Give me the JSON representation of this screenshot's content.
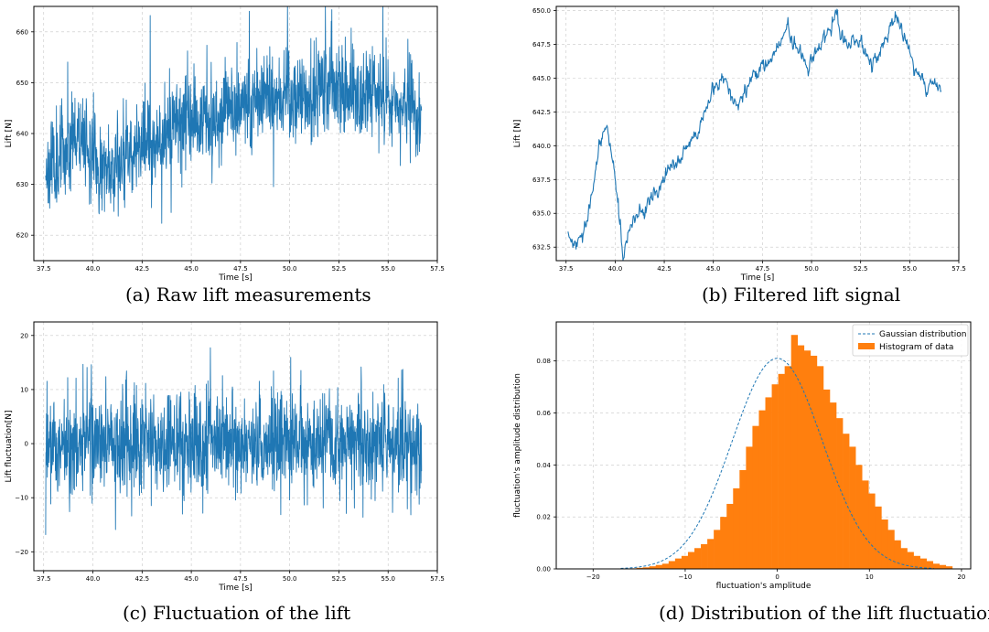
{
  "figure": {
    "captions": {
      "a": "(a) Raw lift measurements",
      "b": "(b) Filtered lift signal",
      "c": "(c) Fluctuation of the lift",
      "d": "(d) Distribution of the lift fluctuation"
    }
  },
  "colors": {
    "series": "#1f77b4",
    "histogram": "#ff7f0e",
    "gaussian": "#1f77b4"
  },
  "chart_data": [
    {
      "id": "a",
      "type": "line",
      "xlabel": "Time [s]",
      "ylabel": "Lift [N]",
      "xlim": [
        37.0,
        57.5
      ],
      "ylim": [
        615,
        665
      ],
      "xticks": [
        "37.5",
        "40.0",
        "42.5",
        "45.0",
        "47.5",
        "50.0",
        "52.5",
        "55.0",
        "57.5"
      ],
      "yticks": [
        "620",
        "630",
        "640",
        "650",
        "660"
      ],
      "grid": true,
      "series": [
        {
          "style": "noisy-dense",
          "x_range": [
            37.6,
            56.7
          ],
          "sample_count": 1400,
          "noise_sd": 4.5,
          "trend": {
            "x": [
              37.6,
              38.4,
              39.0,
              39.6,
              40.3,
              41.0,
              42.0,
              43.0,
              44.0,
              45.0,
              46.0,
              47.0,
              48.0,
              49.0,
              50.0,
              51.0,
              52.0,
              53.0,
              54.0,
              55.0,
              56.0,
              56.7
            ],
            "y": [
              633,
              636,
              640,
              640,
              632,
              634,
              637,
              639,
              641,
              644,
              643,
              645,
              646,
              648,
              646,
              647,
              649,
              646,
              648,
              647,
              645,
              645
            ]
          }
        }
      ]
    },
    {
      "id": "b",
      "type": "line",
      "xlabel": "Time [s]",
      "ylabel": "Lift [N]",
      "xlim": [
        37.0,
        57.5
      ],
      "ylim": [
        631.5,
        650.3
      ],
      "xticks": [
        "37.5",
        "40.0",
        "42.5",
        "45.0",
        "47.5",
        "50.0",
        "52.5",
        "55.0",
        "57.5"
      ],
      "yticks": [
        "632.5",
        "635.0",
        "637.5",
        "640.0",
        "642.5",
        "645.0",
        "647.5",
        "650.0"
      ],
      "grid": true,
      "series": [
        {
          "style": "smooth-wiggle",
          "x_range": [
            37.6,
            56.6
          ],
          "sample_count": 700,
          "wiggle_sd": 0.25,
          "trend": {
            "x": [
              37.6,
              38.0,
              38.3,
              38.8,
              39.2,
              39.6,
              39.9,
              40.2,
              40.4,
              40.7,
              41.2,
              41.8,
              42.5,
              43.2,
              43.8,
              44.3,
              44.8,
              45.2,
              45.6,
              46.0,
              46.5,
              47.0,
              47.5,
              48.0,
              48.4,
              48.8,
              49.2,
              49.8,
              50.3,
              50.8,
              51.3,
              51.7,
              52.1,
              52.6,
              53.0,
              53.5,
              54.0,
              54.4,
              54.8,
              55.2,
              55.5,
              55.8,
              56.1,
              56.6
            ],
            "y": [
              633.3,
              632.5,
              633.0,
              636.0,
              640.0,
              641.5,
              639.0,
              635.0,
              632.0,
              633.5,
              635.0,
              636.0,
              637.5,
              639.0,
              640.0,
              641.0,
              643.5,
              644.5,
              645.0,
              643.0,
              643.5,
              645.0,
              646.0,
              646.5,
              647.5,
              649.0,
              647.0,
              646.0,
              647.0,
              648.0,
              649.5,
              647.5,
              648.0,
              647.5,
              646.0,
              647.0,
              648.5,
              649.0,
              648.0,
              646.0,
              645.0,
              644.0,
              644.6,
              644.5
            ]
          }
        }
      ]
    },
    {
      "id": "c",
      "type": "line",
      "xlabel": "Time [s]",
      "ylabel": "Lift fluctuation[N]",
      "xlim": [
        37.0,
        57.5
      ],
      "ylim": [
        -23.5,
        22.5
      ],
      "xticks": [
        "37.5",
        "40.0",
        "42.5",
        "45.0",
        "47.5",
        "50.0",
        "52.5",
        "55.0",
        "57.5"
      ],
      "yticks": [
        "−20",
        "−10",
        "0",
        "10",
        "20"
      ],
      "grid": true,
      "series": [
        {
          "style": "noisy-dense",
          "x_range": [
            37.6,
            56.7
          ],
          "sample_count": 1400,
          "noise_sd": 4.8,
          "trend": {
            "x": [
              37.6,
              56.7
            ],
            "y": [
              0,
              0
            ]
          }
        }
      ]
    },
    {
      "id": "d",
      "type": "bar",
      "xlabel": "fluctuation's amplitude",
      "ylabel": "fluctuation's amplitude distribution",
      "xlim": [
        -24,
        21
      ],
      "ylim": [
        0,
        0.095
      ],
      "xticks": [
        "−20",
        "−10",
        "0",
        "10",
        "20"
      ],
      "yticks": [
        "0.00",
        "0.02",
        "0.04",
        "0.06",
        "0.08"
      ],
      "grid": true,
      "legend": {
        "position": "top-right",
        "entries": [
          "Gaussian distribution",
          "Histogram of data"
        ]
      },
      "histogram": {
        "bin_start": -16.0,
        "bin_width": 0.7,
        "densities": [
          0.0002,
          0.0004,
          0.0006,
          0.001,
          0.0015,
          0.002,
          0.003,
          0.004,
          0.005,
          0.0065,
          0.008,
          0.0095,
          0.0115,
          0.015,
          0.02,
          0.025,
          0.031,
          0.038,
          0.047,
          0.055,
          0.061,
          0.066,
          0.071,
          0.075,
          0.078,
          0.09,
          0.086,
          0.084,
          0.082,
          0.078,
          0.069,
          0.064,
          0.058,
          0.052,
          0.047,
          0.04,
          0.034,
          0.029,
          0.024,
          0.019,
          0.015,
          0.011,
          0.008,
          0.0065,
          0.005,
          0.004,
          0.003,
          0.002,
          0.0015,
          0.001
        ]
      },
      "gaussian": {
        "mean": 0.0,
        "std": 4.9,
        "peak": 0.081
      }
    }
  ]
}
